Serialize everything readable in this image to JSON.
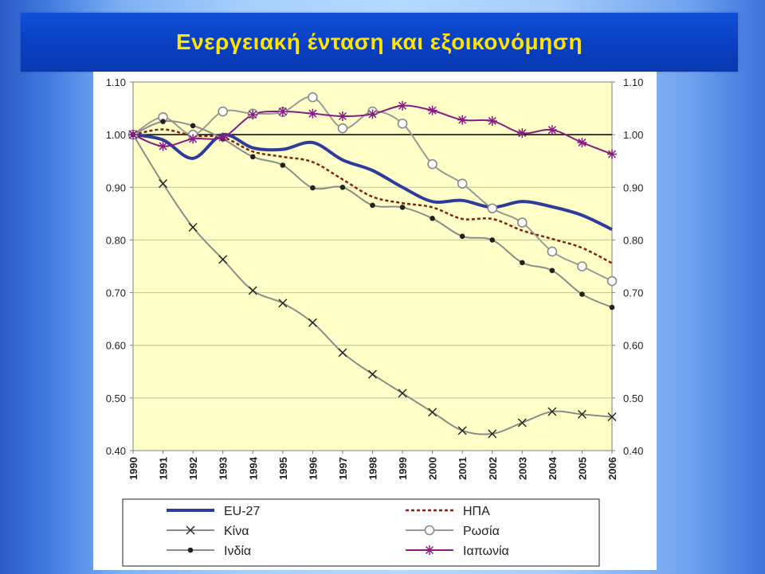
{
  "slide": {
    "title": "Ενεργειακή ένταση και εξοικονόμηση"
  },
  "chart_data": {
    "type": "line",
    "title": "",
    "xlabel": "",
    "ylabel": "",
    "categories": [
      "1990",
      "1991",
      "1992",
      "1993",
      "1994",
      "1995",
      "1996",
      "1997",
      "1998",
      "1999",
      "2000",
      "2001",
      "2002",
      "2003",
      "2004",
      "2005",
      "2006"
    ],
    "ylim": [
      0.4,
      1.1
    ],
    "yticks": [
      "0.40",
      "0.50",
      "0.60",
      "0.70",
      "0.80",
      "0.90",
      "1.00",
      "1.10"
    ],
    "secondary_yticks": [
      "0.40",
      "0.50",
      "0.60",
      "0.70",
      "0.80",
      "0.90",
      "1.00",
      "1.10"
    ],
    "grid": true,
    "reference_line": 1.0,
    "plot_background": "#ffffc7",
    "legend_position": "bottom",
    "series": [
      {
        "name": "EU-27",
        "color": "#2d3c9c",
        "style": "thick",
        "marker": "none",
        "values": [
          1.0,
          0.99,
          0.955,
          1.0,
          0.975,
          0.972,
          0.985,
          0.952,
          0.932,
          0.9,
          0.873,
          0.875,
          0.862,
          0.873,
          0.863,
          0.847,
          0.82
        ]
      },
      {
        "name": "ΗΠΑ",
        "color": "#8b1c14",
        "style": "dotted",
        "marker": "none",
        "values": [
          1.0,
          1.01,
          0.998,
          0.995,
          0.968,
          0.958,
          0.948,
          0.915,
          0.882,
          0.87,
          0.862,
          0.84,
          0.84,
          0.818,
          0.802,
          0.785,
          0.756
        ]
      },
      {
        "name": "Κίνα",
        "color": "#8c8c8c",
        "style": "solid",
        "marker": "x",
        "values": [
          1.0,
          0.907,
          0.824,
          0.763,
          0.704,
          0.68,
          0.643,
          0.586,
          0.545,
          0.509,
          0.473,
          0.438,
          0.432,
          0.453,
          0.474,
          0.469,
          0.464
        ]
      },
      {
        "name": "Ρωσία",
        "color": "#9a9a9a",
        "style": "solid",
        "marker": "circle-open",
        "values": [
          1.0,
          1.033,
          1.0,
          1.044,
          1.04,
          1.043,
          1.071,
          1.012,
          1.044,
          1.021,
          0.944,
          0.907,
          0.86,
          0.833,
          0.778,
          0.75,
          0.722
        ]
      },
      {
        "name": "Ινδία",
        "color": "#8c8c8c",
        "style": "solid",
        "marker": "dot",
        "values": [
          1.0,
          1.025,
          1.017,
          0.992,
          0.958,
          0.942,
          0.899,
          0.9,
          0.866,
          0.862,
          0.841,
          0.807,
          0.8,
          0.757,
          0.742,
          0.697,
          0.672
        ]
      },
      {
        "name": "Ιαπωνία",
        "color": "#8b1a85",
        "style": "solid",
        "marker": "star",
        "values": [
          1.0,
          0.978,
          0.992,
          0.995,
          1.038,
          1.044,
          1.04,
          1.035,
          1.039,
          1.055,
          1.046,
          1.028,
          1.026,
          1.003,
          1.009,
          0.985,
          0.963
        ]
      }
    ],
    "legend_order": [
      "EU-27",
      "ΗΠΑ",
      "Κίνα",
      "Ρωσία",
      "Ινδία",
      "Ιαπωνία"
    ]
  }
}
